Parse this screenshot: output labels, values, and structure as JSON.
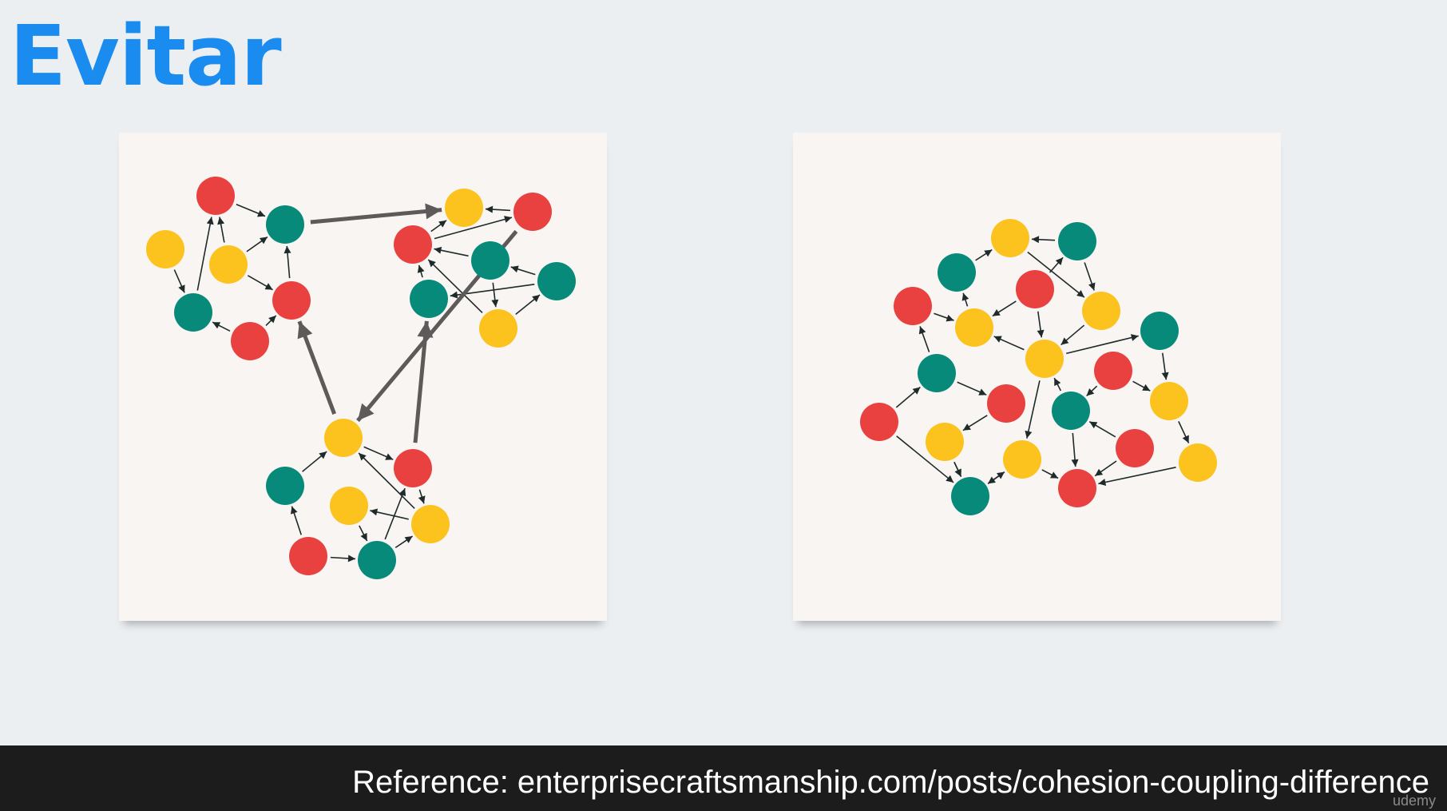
{
  "slide": {
    "title": "Evitar"
  },
  "footer": {
    "reference": "Reference: enterprisecraftsmanship.com/posts/cohesion-coupling-difference",
    "watermark": "udemy"
  },
  "colors": {
    "red": "#e8413f",
    "teal": "#078a7a",
    "yellow": "#fcc21e",
    "small_arrow": "#1f2a2a",
    "big_arrow": "#5f5a5a",
    "title_blue": "#1a8cf0"
  },
  "diagrams": [
    {
      "id": "modular-clusters",
      "nodes": [
        {
          "id": "A1",
          "color": "red"
        },
        {
          "id": "A2",
          "color": "teal"
        },
        {
          "id": "A3",
          "color": "yellow"
        },
        {
          "id": "A4",
          "color": "yellow"
        },
        {
          "id": "A5",
          "color": "teal"
        },
        {
          "id": "A6",
          "color": "red"
        },
        {
          "id": "A7",
          "color": "red"
        },
        {
          "id": "B1",
          "color": "yellow"
        },
        {
          "id": "B2",
          "color": "red"
        },
        {
          "id": "B3",
          "color": "red"
        },
        {
          "id": "B4",
          "color": "teal"
        },
        {
          "id": "B5",
          "color": "teal"
        },
        {
          "id": "B6",
          "color": "teal"
        },
        {
          "id": "B7",
          "color": "yellow"
        },
        {
          "id": "C1",
          "color": "yellow"
        },
        {
          "id": "C2",
          "color": "red"
        },
        {
          "id": "C3",
          "color": "teal"
        },
        {
          "id": "C4",
          "color": "yellow"
        },
        {
          "id": "C5",
          "color": "yellow"
        },
        {
          "id": "C6",
          "color": "red"
        },
        {
          "id": "C7",
          "color": "teal"
        }
      ],
      "edges": [
        [
          "A1",
          "A2"
        ],
        [
          "A4",
          "A1"
        ],
        [
          "A4",
          "A2"
        ],
        [
          "A3",
          "A5"
        ],
        [
          "A5",
          "A1"
        ],
        [
          "A4",
          "A6"
        ],
        [
          "A6",
          "A2"
        ],
        [
          "A7",
          "A5"
        ],
        [
          "A7",
          "A6"
        ],
        [
          "B3",
          "B1"
        ],
        [
          "B2",
          "B1"
        ],
        [
          "B3",
          "B2"
        ],
        [
          "B4",
          "B3"
        ],
        [
          "B7",
          "B3"
        ],
        [
          "B7",
          "B6"
        ],
        [
          "B4",
          "B7"
        ],
        [
          "B6",
          "B4"
        ],
        [
          "B5",
          "B3"
        ],
        [
          "B6",
          "B5"
        ],
        [
          "C1",
          "C2"
        ],
        [
          "C3",
          "C1"
        ],
        [
          "C5",
          "C1"
        ],
        [
          "C2",
          "C5"
        ],
        [
          "C5",
          "C4"
        ],
        [
          "C6",
          "C3"
        ],
        [
          "C6",
          "C7"
        ],
        [
          "C7",
          "C5"
        ],
        [
          "C7",
          "C2"
        ],
        [
          "C4",
          "C7"
        ]
      ],
      "big_edges": [
        [
          "A2",
          "B1"
        ],
        [
          "B2",
          "C1"
        ],
        [
          "C1",
          "A6"
        ],
        [
          "C2",
          "B5"
        ]
      ]
    },
    {
      "id": "tangled-mesh",
      "nodes": [
        {
          "id": "N1",
          "color": "yellow"
        },
        {
          "id": "N2",
          "color": "teal"
        },
        {
          "id": "N3",
          "color": "teal"
        },
        {
          "id": "N4",
          "color": "red"
        },
        {
          "id": "N5",
          "color": "red"
        },
        {
          "id": "N6",
          "color": "yellow"
        },
        {
          "id": "N7",
          "color": "yellow"
        },
        {
          "id": "N8",
          "color": "teal"
        },
        {
          "id": "N9",
          "color": "yellow"
        },
        {
          "id": "N10",
          "color": "teal"
        },
        {
          "id": "N11",
          "color": "red"
        },
        {
          "id": "N12",
          "color": "red"
        },
        {
          "id": "N13",
          "color": "yellow"
        },
        {
          "id": "N14",
          "color": "red"
        },
        {
          "id": "N15",
          "color": "teal"
        },
        {
          "id": "N16",
          "color": "yellow"
        },
        {
          "id": "N17",
          "color": "yellow"
        },
        {
          "id": "N18",
          "color": "red"
        },
        {
          "id": "N19",
          "color": "red"
        },
        {
          "id": "N20",
          "color": "yellow"
        },
        {
          "id": "N21",
          "color": "teal"
        }
      ],
      "edges": [
        [
          "N2",
          "N1"
        ],
        [
          "N3",
          "N1"
        ],
        [
          "N1",
          "N7"
        ],
        [
          "N5",
          "N2"
        ],
        [
          "N2",
          "N7"
        ],
        [
          "N5",
          "N9"
        ],
        [
          "N9",
          "N8"
        ],
        [
          "N7",
          "N9"
        ],
        [
          "N5",
          "N6"
        ],
        [
          "N4",
          "N6"
        ],
        [
          "N6",
          "N3"
        ],
        [
          "N10",
          "N4"
        ],
        [
          "N9",
          "N6"
        ],
        [
          "N10",
          "N12"
        ],
        [
          "N14",
          "N10"
        ],
        [
          "N14",
          "N21"
        ],
        [
          "N16",
          "N21"
        ],
        [
          "N12",
          "N16"
        ],
        [
          "N9",
          "N17"
        ],
        [
          "N15",
          "N9"
        ],
        [
          "N11",
          "N15"
        ],
        [
          "N11",
          "N13"
        ],
        [
          "N8",
          "N13"
        ],
        [
          "N13",
          "N20"
        ],
        [
          "N20",
          "N19"
        ],
        [
          "N18",
          "N19"
        ],
        [
          "N18",
          "N15"
        ],
        [
          "N15",
          "N19"
        ],
        [
          "N21",
          "N17"
        ],
        [
          "N17",
          "N19"
        ],
        [
          "N16",
          "N21"
        ],
        [
          "N17",
          "N21"
        ]
      ],
      "big_edges": []
    }
  ]
}
